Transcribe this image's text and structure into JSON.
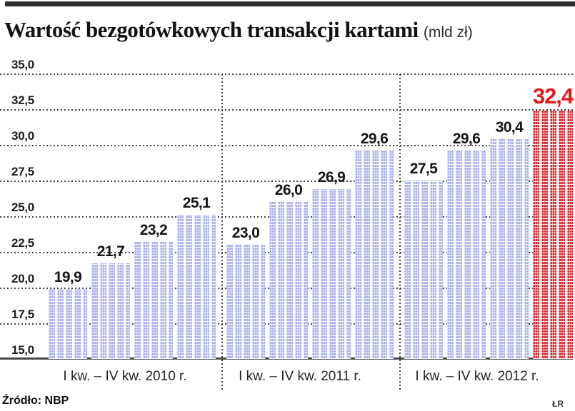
{
  "title": {
    "text": "Wartość bezgotówkowych transakcji kartami",
    "unit": "(mld zł)"
  },
  "source": "Źródło: NBP",
  "credit": "ŁR",
  "colors": {
    "bar": "#a9afef",
    "bar_highlight": "#d9252b",
    "value_label": "#151515",
    "value_label_highlight": "#e8161d",
    "grid": "#454545"
  },
  "y_axis": {
    "tick_labels": [
      "35,0",
      "32,5",
      "30,0",
      "27,5",
      "25,0",
      "22,5",
      "20,0",
      "17,5",
      "15,0"
    ],
    "min": 15.0,
    "max": 35.0,
    "step": 2.5
  },
  "groups": [
    {
      "label": "I kw. – IV kw. 2010 r.",
      "values": [
        19.9,
        21.7,
        23.2,
        25.1
      ],
      "value_labels": [
        "19,9",
        "21,7",
        "23,2",
        "25,1"
      ]
    },
    {
      "label": "I kw. – IV kw. 2011 r.",
      "values": [
        23.0,
        26.0,
        26.9,
        29.6
      ],
      "value_labels": [
        "23,0",
        "26,0",
        "26,9",
        "29,6"
      ]
    },
    {
      "label": "I kw. – IV kw. 2012 r.",
      "values": [
        27.5,
        29.6,
        30.4,
        32.4
      ],
      "value_labels": [
        "27,5",
        "29,6",
        "30,4",
        "32,4"
      ],
      "highlight_index": 3
    }
  ],
  "chart_data": {
    "type": "bar",
    "title": "Wartość bezgotówkowych transakcji kartami (mld zł)",
    "ylabel": "mld zł",
    "ylim": [
      15.0,
      35.0
    ],
    "ytick_step": 2.5,
    "grid": true,
    "legend": false,
    "groups": [
      {
        "category": "I kw. – IV kw. 2010 r.",
        "values": [
          19.9,
          21.7,
          23.2,
          25.1
        ]
      },
      {
        "category": "I kw. – IV kw. 2011 r.",
        "values": [
          23.0,
          26.0,
          26.9,
          29.6
        ]
      },
      {
        "category": "I kw. – IV kw. 2012 r.",
        "values": [
          27.5,
          29.6,
          30.4,
          32.4
        ]
      }
    ],
    "highlight": {
      "category": "I kw. – IV kw. 2012 r.",
      "index": 3,
      "value": 32.4,
      "color": "red"
    },
    "source": "Źródło: NBP"
  }
}
